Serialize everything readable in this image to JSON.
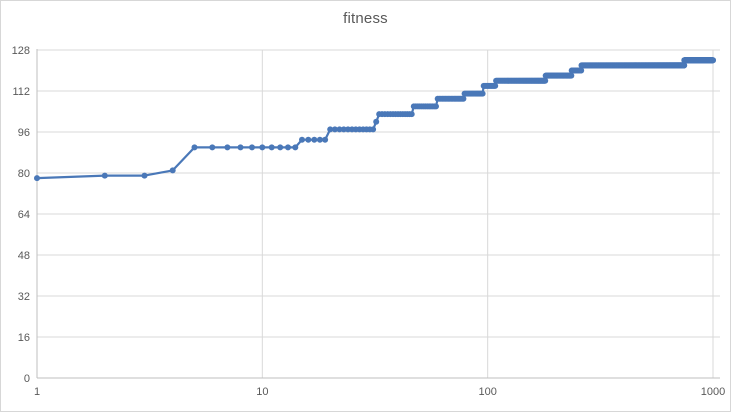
{
  "chart_data": {
    "type": "line",
    "title": "fitness",
    "xlabel": "",
    "ylabel": "",
    "x_scale": "log",
    "xlim": [
      1,
      1000
    ],
    "ylim": [
      0,
      128
    ],
    "x_ticks": [
      1,
      10,
      100,
      1000
    ],
    "y_ticks": [
      0,
      16,
      32,
      48,
      64,
      80,
      96,
      112,
      128
    ],
    "grid": true,
    "legend_position": "none",
    "marker": "circle",
    "series": [
      {
        "name": "fitness",
        "note": "step function: value holds from each breakpoint generation until the next; markers plotted at every integer generation 1..1000",
        "x_end": 1000,
        "step_breakpoints": [
          [
            1,
            78
          ],
          [
            2,
            79
          ],
          [
            4,
            81
          ],
          [
            5,
            90
          ],
          [
            15,
            93
          ],
          [
            20,
            97
          ],
          [
            32,
            100
          ],
          [
            33,
            103
          ],
          [
            47,
            106
          ],
          [
            60,
            109
          ],
          [
            79,
            111
          ],
          [
            96,
            114
          ],
          [
            109,
            116
          ],
          [
            181,
            118
          ],
          [
            236,
            120
          ],
          [
            261,
            122
          ],
          [
            746,
            124
          ]
        ]
      }
    ]
  },
  "theme": {
    "series_color": "#4a78b8",
    "gridline_color": "#d9d9d9",
    "axis_line_color": "#bfbfbf",
    "label_color": "#595959",
    "background": "#ffffff",
    "border_color": "#d7d7d7"
  }
}
